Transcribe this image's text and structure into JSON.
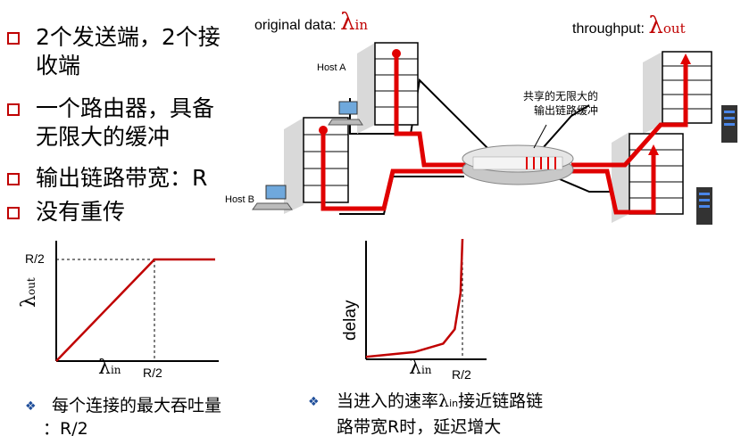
{
  "bullets": [
    {
      "line1": "2个发送端，2个接",
      "line2": "收端"
    },
    {
      "line1": "一个路由器，具备",
      "line2": "无限大的缓冲"
    },
    {
      "line1": "输出链路带宽：R",
      "line2": ""
    },
    {
      "line1": "没有重传",
      "line2": ""
    }
  ],
  "diagram": {
    "original_label": "original data: ",
    "lambda": "λ",
    "in_sub": "in",
    "throughput_label": "throughput: ",
    "out_sub": "out",
    "host_a": "Host A",
    "host_b": "Host B",
    "router_note_line1": "共享的无限大的",
    "router_note_line2": "输出链路缓冲",
    "accent_color": "#e00000"
  },
  "chart_data": [
    {
      "type": "line",
      "series": [
        {
          "values": [
            [
              0,
              0
            ],
            [
              0.5,
              0.5
            ],
            [
              0.8,
              0.5
            ]
          ]
        }
      ],
      "ylabel": "λout",
      "xlabel": "λin",
      "x_tick_labels": [
        "R/2"
      ],
      "y_tick_labels": [
        "R/2"
      ],
      "xlim": [
        0,
        0.8
      ],
      "ylim": [
        0,
        0.5
      ],
      "grid": false
    },
    {
      "type": "line",
      "series": [
        {
          "values": [
            [
              0,
              0.02
            ],
            [
              0.25,
              0.06
            ],
            [
              0.4,
              0.13
            ],
            [
              0.46,
              0.25
            ],
            [
              0.49,
              0.55
            ],
            [
              0.5,
              1.0
            ]
          ]
        }
      ],
      "ylabel": "delay",
      "xlabel": "λin",
      "x_tick_labels": [
        "R/2"
      ],
      "xlim": [
        0,
        0.55
      ],
      "grid": false
    }
  ],
  "charts": {
    "left": {
      "y_tick": "R/2",
      "x_tick": "R/2",
      "ylabel_lambda": "λ",
      "ylabel_sub": "out",
      "xlabel_lambda": "λ",
      "xlabel_sub": "in"
    },
    "right": {
      "ylabel": "delay",
      "x_tick": "R/2",
      "xlabel_lambda": "λ",
      "xlabel_sub": "in"
    }
  },
  "captions": {
    "left_line1": "每个连接的最大吞吐量",
    "left_line2": "：R/2",
    "right_line1_a": "当进入的速率",
    "right_lambda": "λ",
    "right_sub": "in",
    "right_line1_b": "接近链路链",
    "right_line2": "路带宽R时，延迟增大"
  }
}
